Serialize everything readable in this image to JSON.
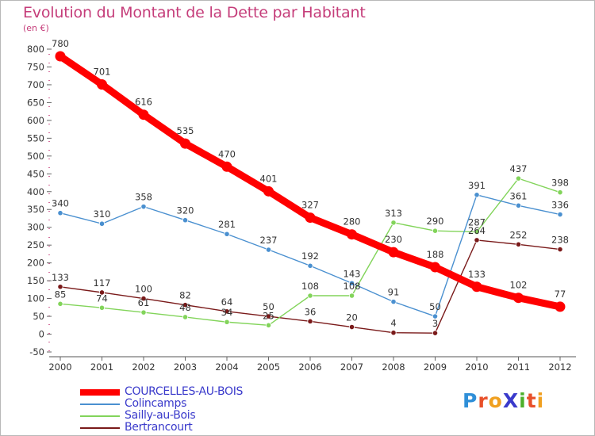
{
  "title": "Evolution du Montant de la Dette par Habitant",
  "unit_label": "(en €)",
  "brand": {
    "name": "ProXiti",
    "letters": [
      "P",
      "r",
      "o",
      "X",
      "i",
      "t",
      "i"
    ],
    "letter_colors": [
      "#2f8fd8",
      "#e8502a",
      "#f0a020",
      "#3a3acb",
      "#4caf2a",
      "#e8502a",
      "#f0a020"
    ]
  },
  "chart_data": {
    "type": "line",
    "title": "Evolution du Montant de la Dette par Habitant",
    "ylabel": "(en €)",
    "xlabel": "",
    "x": [
      "2000",
      "2001",
      "2002",
      "2003",
      "2004",
      "2005",
      "2006",
      "2007",
      "2008",
      "2009",
      "2010",
      "2011",
      "2012"
    ],
    "ylim": [
      -50,
      800
    ],
    "y_ticks": [
      -50,
      0,
      50,
      100,
      150,
      200,
      250,
      300,
      350,
      400,
      450,
      500,
      550,
      600,
      650,
      700,
      750,
      800
    ],
    "grid": false,
    "legend_position": "bottom",
    "series": [
      {
        "name": "COURCELLES-AU-BOIS",
        "color": "#ff0000",
        "values": [
          780,
          701,
          616,
          535,
          470,
          401,
          327,
          280,
          230,
          188,
          133,
          102,
          77
        ]
      },
      {
        "name": "Colincamps",
        "color": "#4a90d0",
        "values": [
          340,
          310,
          358,
          320,
          281,
          237,
          192,
          143,
          91,
          50,
          391,
          361,
          336
        ]
      },
      {
        "name": "Sailly-au-Bois",
        "color": "#82d45a",
        "values": [
          85,
          74,
          61,
          48,
          34,
          25,
          108,
          108,
          313,
          290,
          287,
          437,
          398
        ]
      },
      {
        "name": "Bertrancourt",
        "color": "#7a1a1a",
        "values": [
          133,
          117,
          100,
          82,
          64,
          50,
          36,
          20,
          4,
          3,
          264,
          252,
          238
        ]
      }
    ]
  }
}
